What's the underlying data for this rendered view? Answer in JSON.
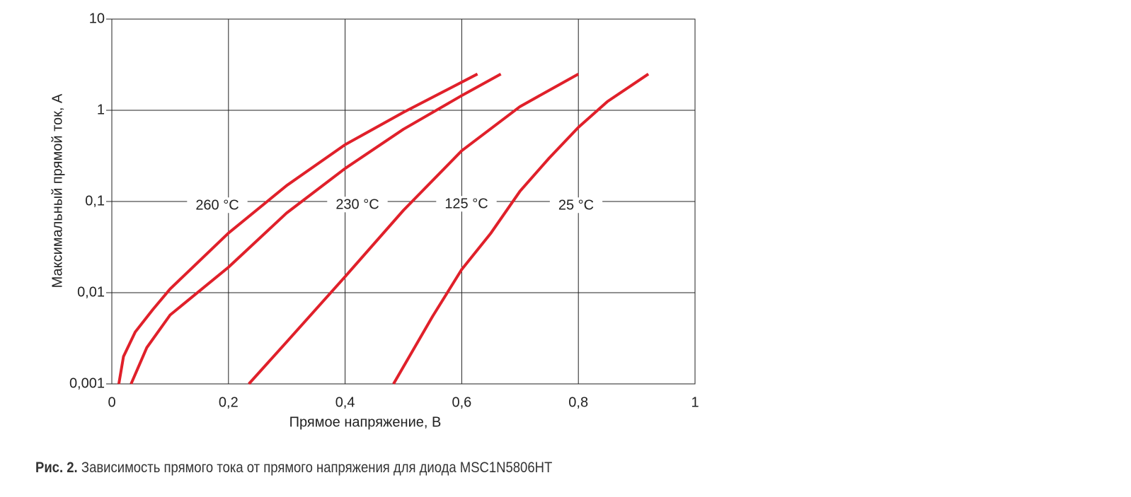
{
  "chart_data": {
    "type": "line",
    "xlabel": "Прямое напряжение, В",
    "ylabel": "Максимальный прямой ток, А",
    "xlim": [
      0,
      1
    ],
    "xticks": [
      0,
      {
        "value": 0.2,
        "label": "0,2"
      },
      {
        "value": 0.4,
        "label": "0,4"
      },
      {
        "value": 0.6,
        "label": "0,6"
      },
      {
        "value": 0.8,
        "label": "0,8"
      },
      1
    ],
    "ylim": [
      0.001,
      10
    ],
    "yticks": [
      {
        "value": 0.001,
        "label": "0,001"
      },
      {
        "value": 0.01,
        "label": "0,01"
      },
      {
        "value": 0.1,
        "label": "0,1"
      },
      1,
      10
    ],
    "ylog": true,
    "grid": true,
    "series": [
      {
        "name": "260 °C",
        "color": "#e0202a",
        "x": [
          0.012,
          0.02,
          0.04,
          0.07,
          0.1,
          0.2,
          0.3,
          0.4,
          0.5,
          0.627
        ],
        "values": [
          0.001,
          0.002,
          0.0037,
          0.0065,
          0.011,
          0.045,
          0.15,
          0.42,
          0.95,
          2.5
        ]
      },
      {
        "name": "230 °C",
        "color": "#e0202a",
        "x": [
          0.033,
          0.06,
          0.1,
          0.2,
          0.3,
          0.4,
          0.5,
          0.6,
          0.667
        ],
        "values": [
          0.001,
          0.0025,
          0.0057,
          0.019,
          0.075,
          0.23,
          0.62,
          1.45,
          2.5
        ]
      },
      {
        "name": "125 °C",
        "color": "#e0202a",
        "x": [
          0.235,
          0.3,
          0.4,
          0.5,
          0.6,
          0.7,
          0.8
        ],
        "values": [
          0.001,
          0.0029,
          0.015,
          0.08,
          0.36,
          1.1,
          2.5
        ]
      },
      {
        "name": "25 °C",
        "color": "#e0202a",
        "x": [
          0.483,
          0.55,
          0.6,
          0.65,
          0.7,
          0.75,
          0.8,
          0.85,
          0.92
        ],
        "values": [
          0.001,
          0.0055,
          0.018,
          0.045,
          0.13,
          0.3,
          0.65,
          1.25,
          2.5
        ]
      }
    ]
  },
  "figure_caption": {
    "label": "Рис. 2.",
    "text": "Зависимость прямого тока от прямого напряжения для диода MSC1N5806HT"
  }
}
